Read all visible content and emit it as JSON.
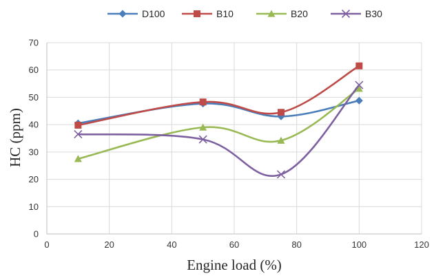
{
  "chart_data": {
    "type": "line",
    "title": "",
    "xlabel": "Engine load (%)",
    "ylabel": "HC (ppm)",
    "xlim": [
      0,
      120
    ],
    "ylim": [
      0,
      70
    ],
    "xticks": [
      0,
      20,
      40,
      60,
      80,
      100,
      120
    ],
    "yticks": [
      0,
      10,
      20,
      30,
      40,
      50,
      60,
      70
    ],
    "grid": true,
    "legend_position": "top-center",
    "x": [
      10,
      50,
      75,
      100
    ],
    "series": [
      {
        "name": "D100",
        "values": [
          40.5,
          47.7,
          43.0,
          48.8
        ],
        "color": "#4a7ebb",
        "marker": "diamond"
      },
      {
        "name": "B10",
        "values": [
          39.8,
          48.3,
          44.5,
          61.5
        ],
        "color": "#be4b48",
        "marker": "square"
      },
      {
        "name": "B20",
        "values": [
          27.5,
          39.0,
          34.2,
          53.2
        ],
        "color": "#98b954",
        "marker": "triangle"
      },
      {
        "name": "B30",
        "values": [
          36.5,
          34.6,
          21.8,
          54.5
        ],
        "color": "#7d60a0",
        "marker": "x"
      }
    ]
  }
}
